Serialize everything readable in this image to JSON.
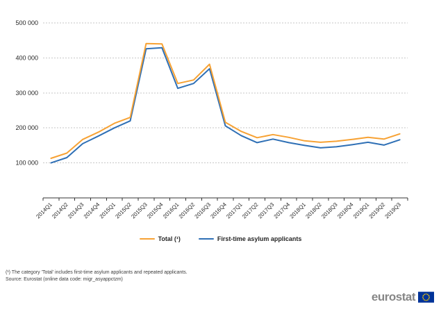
{
  "chart_data": {
    "type": "line",
    "categories": [
      "2014Q1",
      "2014Q2",
      "2014Q3",
      "2014Q4",
      "2015Q1",
      "2015Q2",
      "2015Q3",
      "2015Q4",
      "2016Q1",
      "2016Q2",
      "2016Q3",
      "2016Q4",
      "2017Q1",
      "2017Q2",
      "2017Q3",
      "2017Q4",
      "2018Q1",
      "2018Q2",
      "2018Q3",
      "2018Q4",
      "2019Q1",
      "2019Q2",
      "2019Q3"
    ],
    "series": [
      {
        "name": "Total (¹)",
        "color": "#F7A234",
        "values": [
          113000,
          128000,
          167000,
          188000,
          213000,
          230000,
          441000,
          440000,
          327000,
          337000,
          382000,
          216000,
          190000,
          172000,
          181000,
          173000,
          163000,
          159000,
          162000,
          167000,
          173000,
          168000,
          183000
        ]
      },
      {
        "name": "First-time asylum applicants",
        "color": "#2E6FB5",
        "values": [
          100000,
          115000,
          155000,
          177000,
          200000,
          220000,
          426000,
          429000,
          313000,
          327000,
          369000,
          206000,
          178000,
          158000,
          168000,
          158000,
          150000,
          143000,
          146000,
          152000,
          159000,
          151000,
          166000
        ]
      }
    ],
    "ylim": [
      0,
      500000
    ],
    "ytick_values": [
      100000,
      200000,
      300000,
      400000,
      500000
    ],
    "ytick_labels": [
      "100 000",
      "200 000",
      "300 000",
      "400 000",
      "500 000"
    ],
    "xlabel": "",
    "ylabel": "",
    "grid": "horizontal-dashed",
    "legend_position": "bottom-center",
    "axis_color": "#333333",
    "grid_color": "#c6c6c6"
  },
  "legend": {
    "items": [
      {
        "label": "Total (¹)",
        "color": "#F7A234"
      },
      {
        "label": "First-time asylum applicants",
        "color": "#2E6FB5"
      }
    ]
  },
  "footnotes": {
    "note1": "(¹) The category 'Total' includes first-time asylum applicants and repeated applicants.",
    "source": "Source: Eurostat (online data code: migr_asyappctzm)"
  },
  "branding": {
    "logo_text": "eurostat",
    "flag_blue": "#003399",
    "star_yellow": "#FFCC00"
  }
}
